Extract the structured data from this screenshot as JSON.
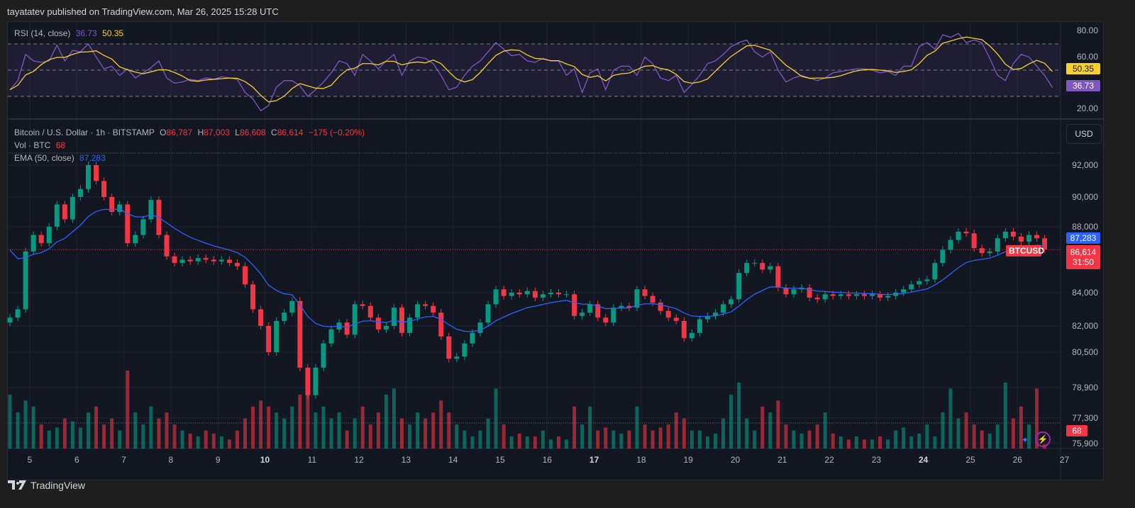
{
  "header": {
    "published": "tayatatev published on TradingView.com, Mar 26, 2025 15:28 UTC"
  },
  "footer": {
    "logo_text": "TradingView"
  },
  "rsi_legend": {
    "label": "RSI (14, close)",
    "rsi_value": "36.73",
    "ma_value": "50.35"
  },
  "price_legend": {
    "symbol": "Bitcoin / U.S. Dollar · 1h · BITSTAMP",
    "o_label": "O",
    "o": "86,787",
    "h_label": "H",
    "h": "87,003",
    "l_label": "L",
    "l": "86,608",
    "c_label": "C",
    "c": "86,614",
    "change": "−175 (−0.20%)",
    "vol_label": "Vol · BTC",
    "vol": "68",
    "ema_label": "EMA (50, close)",
    "ema": "87,283"
  },
  "axis": {
    "currency": "USD",
    "rsi_ticks": [
      "80.00",
      "60.00",
      "20.00"
    ],
    "price_ticks": [
      "92,000",
      "90,000",
      "88,000",
      "84,000",
      "82,000",
      "80,500",
      "78,900",
      "77,300",
      "75,900"
    ],
    "days": [
      "5",
      "6",
      "7",
      "8",
      "9",
      "10",
      "11",
      "12",
      "13",
      "14",
      "15",
      "16",
      "17",
      "18",
      "19",
      "20",
      "21",
      "22",
      "23",
      "24",
      "25",
      "26",
      "27"
    ],
    "bold_days": [
      "10",
      "17",
      "24"
    ]
  },
  "tags": {
    "rsi_ma": "50.35",
    "rsi": "36.73",
    "ema": "87,283",
    "symbol": "BTCUSD",
    "price": "86,614",
    "countdown": "31:50",
    "volume": "68"
  },
  "colors": {
    "up": "#089981",
    "down": "#f23645",
    "ema": "#2962ff",
    "rsi": "#7e57c2",
    "rsi_ma": "#f7d02c",
    "background": "#131722"
  },
  "chart_data": [
    {
      "type": "line",
      "title": "Bitcoin / U.S. Dollar · 1h · BITSTAMP",
      "x_start": "2025-03-04 12:00",
      "interval_hours": 4,
      "y_scale": "log",
      "ylim": [
        75900,
        92400
      ],
      "grid": true,
      "series": [
        {
          "name": "Bitcoin / U.S. Dollar",
          "close": [
            82500,
            83000,
            86500,
            87500,
            87000,
            88000,
            89500,
            88500,
            90000,
            90500,
            92000,
            91000,
            90000,
            89000,
            89500,
            87000,
            87500,
            88500,
            89800,
            87500,
            86200,
            85800,
            86000,
            85900,
            86100,
            86000,
            85900,
            86000,
            85800,
            85600,
            84500,
            83000,
            82000,
            80500,
            82300,
            82800,
            83500,
            79800,
            78500,
            79800,
            81000,
            81800,
            82200,
            81500,
            83300,
            83200,
            82500,
            81800,
            82000,
            83100,
            81600,
            82500,
            83300,
            83200,
            82800,
            81400,
            80200,
            80300,
            81000,
            81600,
            82200,
            83300,
            84200,
            83800,
            84000,
            83900,
            84100,
            83700,
            83900,
            84000,
            83900,
            83900,
            82600,
            82800,
            83300,
            82500,
            82200,
            83100,
            83200,
            83100,
            84200,
            83800,
            83400,
            82900,
            82500,
            82300,
            81300,
            81600,
            82400,
            82600,
            82800,
            83300,
            83600,
            85200,
            85800,
            85800,
            85400,
            85600,
            84300,
            83900,
            84200,
            84300,
            83700,
            83600,
            83900,
            83800,
            83900,
            83800,
            83900,
            83800,
            83900,
            83700,
            83800,
            84000,
            84200,
            84500,
            84700,
            84800,
            85800,
            86600,
            87200,
            87700,
            87600,
            86700,
            86400,
            86500,
            87300,
            87700,
            87400,
            87100,
            87500,
            87300,
            86614
          ]
        },
        {
          "name": "EMA (50, close)",
          "last": 87283
        }
      ],
      "tick_values": [
        92000,
        90000,
        88000,
        84000,
        82000,
        80500,
        78900,
        77300,
        75900
      ]
    },
    {
      "type": "bar",
      "title": "Vol · BTC",
      "values": [
        900,
        600,
        800,
        700,
        400,
        300,
        350,
        500,
        450,
        350,
        600,
        700,
        400,
        500,
        300,
        1300,
        600,
        400,
        700,
        500,
        600,
        400,
        300,
        250,
        200,
        300,
        250,
        200,
        150,
        300,
        500,
        700,
        800,
        700,
        600,
        500,
        700,
        900,
        1000,
        600,
        700,
        500,
        600,
        300,
        500,
        700,
        400,
        600,
        900,
        1000,
        500,
        400,
        600,
        500,
        600,
        800,
        600,
        400,
        300,
        200,
        300,
        500,
        1000,
        400,
        200,
        250,
        200,
        200,
        300,
        150,
        200,
        150,
        700,
        400,
        700,
        300,
        350,
        300,
        250,
        300,
        700,
        400,
        300,
        350,
        400,
        600,
        500,
        300,
        300,
        200,
        250,
        500,
        900,
        1100,
        500,
        300,
        700,
        600,
        800,
        400,
        300,
        250,
        300,
        400,
        600,
        250,
        200,
        150,
        200,
        150,
        150,
        200,
        150,
        300,
        350,
        200,
        250,
        400,
        200,
        600,
        1000,
        500,
        600,
        400,
        300,
        250,
        400,
        1100,
        500,
        700,
        400,
        1000,
        68
      ]
    },
    {
      "type": "line",
      "title": "RSI (14, close)",
      "ylim": [
        15,
        85
      ],
      "bands": [
        30,
        50,
        70
      ],
      "series": [
        {
          "name": "RSI",
          "values": [
            35,
            42,
            62,
            57,
            56,
            57,
            69,
            57,
            65,
            64,
            70,
            60,
            51,
            53,
            46,
            51,
            44,
            48,
            52,
            57,
            44,
            40,
            41,
            43,
            42,
            44,
            43,
            45,
            44,
            43,
            33,
            28,
            19,
            23,
            37,
            42,
            42,
            38,
            30,
            35,
            41,
            48,
            57,
            55,
            46,
            62,
            57,
            51,
            57,
            62,
            46,
            57,
            60,
            59,
            55,
            46,
            35,
            37,
            46,
            53,
            57,
            64,
            71,
            66,
            61,
            62,
            57,
            56,
            59,
            57,
            57,
            46,
            51,
            33,
            48,
            51,
            35,
            50,
            53,
            53,
            46,
            60,
            55,
            44,
            42,
            46,
            33,
            39,
            46,
            55,
            57,
            62,
            68,
            71,
            73,
            64,
            60,
            64,
            50,
            41,
            44,
            46,
            44,
            42,
            44,
            48,
            49,
            50,
            51,
            51,
            50,
            48,
            49,
            46,
            53,
            53,
            68,
            71,
            66,
            77,
            75,
            78,
            71,
            73,
            71,
            59,
            46,
            42,
            55,
            62,
            60,
            53,
            46,
            36.73
          ]
        },
        {
          "name": "RSI-based MA",
          "last": 50.35
        }
      ]
    }
  ]
}
